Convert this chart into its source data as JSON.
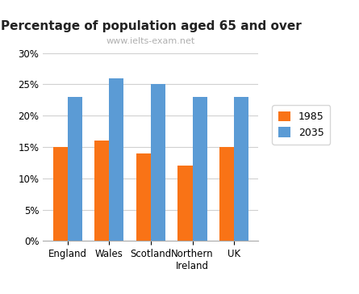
{
  "title": "Percentage of population aged 65 and over",
  "subtitle": "www.ielts-exam.net",
  "categories": [
    "England",
    "Wales",
    "Scotland",
    "Northern\nIreland",
    "UK"
  ],
  "values_1985": [
    15,
    16,
    14,
    12,
    15
  ],
  "values_2035": [
    23,
    26,
    25,
    23,
    23
  ],
  "color_1985": "#F97316",
  "color_2035": "#5B9BD5",
  "legend_labels": [
    "1985",
    "2035"
  ],
  "ylim": [
    0,
    30
  ],
  "yticks": [
    0,
    5,
    10,
    15,
    20,
    25,
    30
  ],
  "bar_width": 0.35,
  "background_color": "#ffffff",
  "grid_color": "#d0d0d0",
  "title_fontsize": 11,
  "subtitle_fontsize": 8,
  "subtitle_color": "#b0b0b0",
  "tick_fontsize": 8.5,
  "legend_fontsize": 9
}
